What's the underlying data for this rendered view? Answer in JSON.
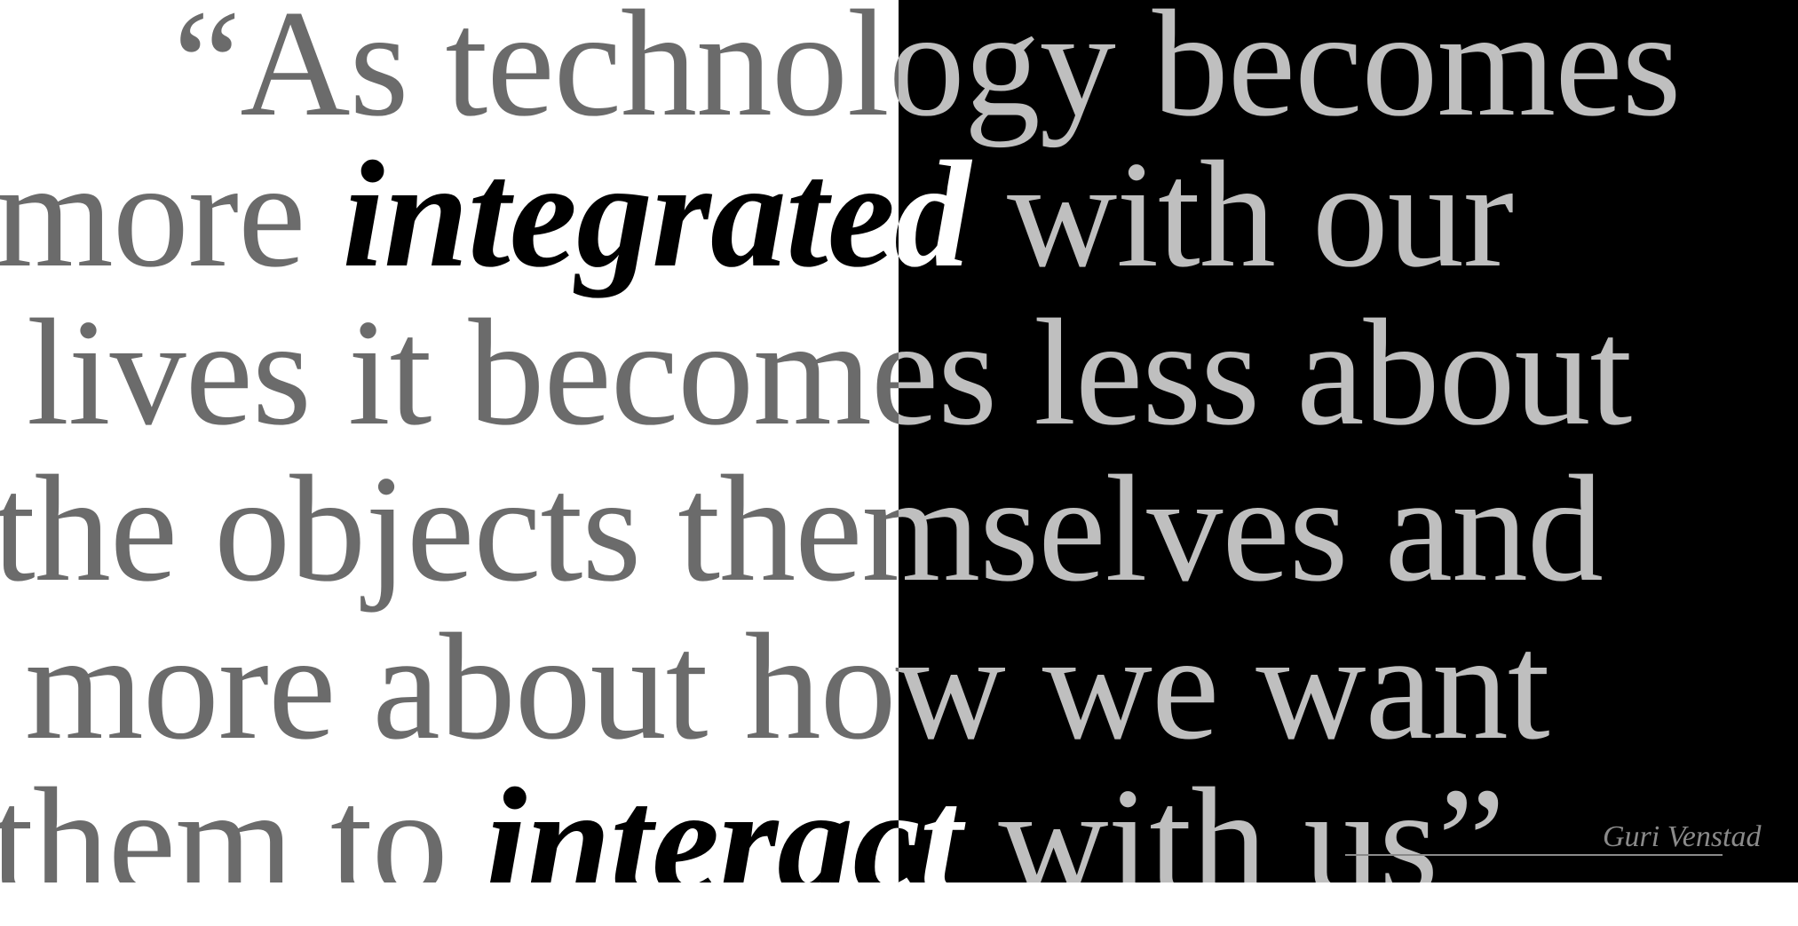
{
  "quote": {
    "lines": [
      [
        {
          "t": "“As technology becomes",
          "e": false
        }
      ],
      [
        {
          "t": "more ",
          "e": false
        },
        {
          "t": "integrated",
          "e": true
        },
        {
          "t": " with our",
          "e": false
        }
      ],
      [
        {
          "t": "lives it becomes less about",
          "e": false
        }
      ],
      [
        {
          "t": "the objects themselves and",
          "e": false
        }
      ],
      [
        {
          "t": "more about how we want",
          "e": false
        }
      ],
      [
        {
          "t": "them to ",
          "e": false
        },
        {
          "t": "interact",
          "e": true
        },
        {
          "t": " with us”",
          "e": false
        }
      ]
    ]
  },
  "attribution": "Guri Venstad",
  "colors": {
    "left_background": "#ffffff",
    "right_background": "#000000",
    "left_text": "#6b6b6b",
    "left_emphasis": "#000000",
    "right_text": "#bfbfbf",
    "right_emphasis": "#ffffff"
  }
}
